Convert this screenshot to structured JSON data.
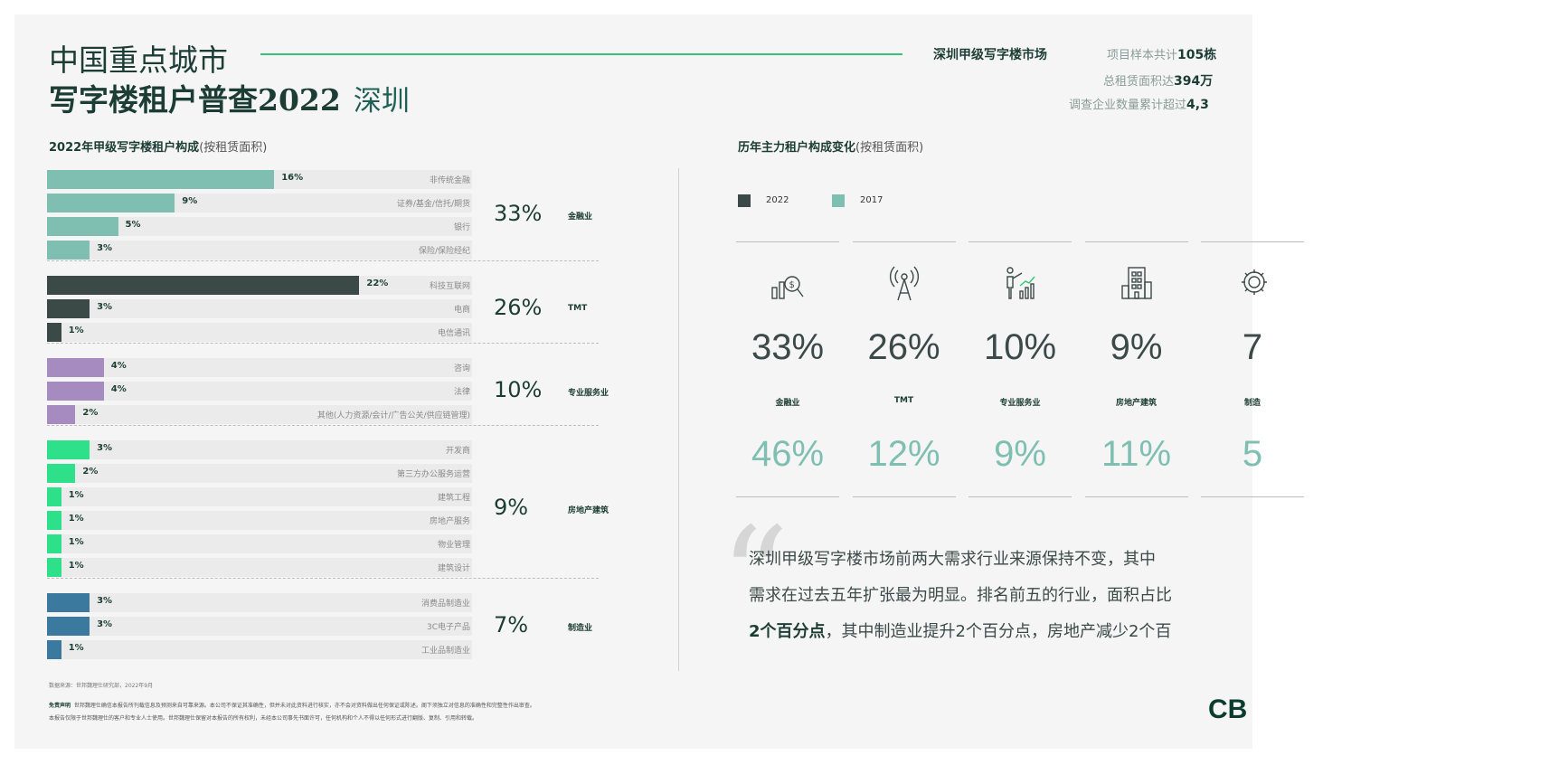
{
  "header": {
    "title_line1": "中国重点城市",
    "title_line2": "写字楼租户普查2022",
    "city": "深圳",
    "market_label": "深圳甲级写字楼市场",
    "stats": [
      {
        "prefix": "项目样本共计",
        "value": "105栋"
      },
      {
        "prefix": "总租赁面积达",
        "value": "394万"
      },
      {
        "prefix": "调查企业数量累计超过",
        "value": "4,3"
      }
    ]
  },
  "left_section": {
    "heading": "2022年甲级写字楼租户构成",
    "sub": "(按租赁面积)"
  },
  "right_section": {
    "heading": "历年主力租户构成变化",
    "sub": "(按租赁面积)"
  },
  "colors": {
    "finance": "#7fbfb1",
    "tmt": "#3c4a47",
    "professional": "#a58bbf",
    "realestate": "#2ee08a",
    "manufacturing": "#3b7a9e"
  },
  "chart_data": [
    {
      "type": "bar",
      "orientation": "horizontal",
      "xlim": [
        0,
        30
      ],
      "groups": [
        {
          "name": "金融业",
          "total": "33%",
          "color_key": "finance",
          "items": [
            {
              "label": "非传统金融",
              "value": 16,
              "text": "16%"
            },
            {
              "label": "证券/基金/信托/期货",
              "value": 9,
              "text": "9%"
            },
            {
              "label": "银行",
              "value": 5,
              "text": "5%"
            },
            {
              "label": "保险/保险经纪",
              "value": 3,
              "text": "3%"
            }
          ]
        },
        {
          "name": "TMT",
          "total": "26%",
          "color_key": "tmt",
          "items": [
            {
              "label": "科技互联网",
              "value": 22,
              "text": "22%"
            },
            {
              "label": "电商",
              "value": 3,
              "text": "3%"
            },
            {
              "label": "电信通讯",
              "value": 1,
              "text": "1%"
            }
          ]
        },
        {
          "name": "专业服务业",
          "total": "10%",
          "color_key": "professional",
          "items": [
            {
              "label": "咨询",
              "value": 4,
              "text": "4%"
            },
            {
              "label": "法律",
              "value": 4,
              "text": "4%"
            },
            {
              "label": "其他(人力资源/会计/广告公关/供应链管理)",
              "value": 2,
              "text": "2%"
            }
          ]
        },
        {
          "name": "房地产建筑",
          "total": "9%",
          "color_key": "realestate",
          "items": [
            {
              "label": "开发商",
              "value": 3,
              "text": "3%"
            },
            {
              "label": "第三方办公服务运营",
              "value": 2,
              "text": "2%"
            },
            {
              "label": "建筑工程",
              "value": 1,
              "text": "1%"
            },
            {
              "label": "房地产服务",
              "value": 1,
              "text": "1%"
            },
            {
              "label": "物业管理",
              "value": 1,
              "text": "1%"
            },
            {
              "label": "建筑设计",
              "value": 1,
              "text": "1%"
            }
          ]
        },
        {
          "name": "制造业",
          "total": "7%",
          "color_key": "manufacturing",
          "items": [
            {
              "label": "消费品制造业",
              "value": 3,
              "text": "3%"
            },
            {
              "label": "3C电子产品",
              "value": 3,
              "text": "3%"
            },
            {
              "label": "工业品制造业",
              "value": 1,
              "text": "1%"
            }
          ]
        }
      ]
    },
    {
      "type": "table",
      "legend": [
        {
          "label": "2022",
          "color": "#3c4a47"
        },
        {
          "label": "2017",
          "color": "#7fbfb1"
        }
      ],
      "columns": [
        {
          "name": "金融业",
          "icon": "finance-chart-icon",
          "v2022": "33%",
          "v2017": "46%"
        },
        {
          "name": "TMT",
          "icon": "signal-tower-icon",
          "v2022": "26%",
          "v2017": "12%"
        },
        {
          "name": "专业服务业",
          "icon": "presenter-icon",
          "v2022": "10%",
          "v2017": "9%"
        },
        {
          "name": "房地产建筑",
          "icon": "building-icon",
          "v2022": "9%",
          "v2017": "11%"
        },
        {
          "name": "制造",
          "icon": "gear-icon",
          "v2022": "7",
          "v2017": "5"
        }
      ]
    }
  ],
  "quote": {
    "line1": "深圳甲级写字楼市场前两大需求行业来源保持不变，其中",
    "line2": "需求在过去五年扩张最为明显。排名前五的行业，面积占比",
    "line3_bold": "2个百分点",
    "line3_rest": "，其中制造业提升2个百分点，房地产减少2个百"
  },
  "footer": {
    "source": "数据来源：世邦魏理仕研究部，2022年9月",
    "disclaimer_label": "免责声明",
    "disclaimer_1": "世邦魏理仕确信本报告所刊载信息及预测来自可靠来源。本公司不保证其准确性，但并未对此资料进行核实，亦不会对资料做出任何保证或陈述。阁下须独立对信息的准确性和完整性作出审查。",
    "disclaimer_2": "本报告仅限于世邦魏理仕的客户和专业人士使用。世邦魏理仕保留对本报告的所有权利，未经本公司事先书面许可，任何机构和个人不得以任何形式进行翻版、复制、引用和转载。",
    "logo": "CB"
  }
}
